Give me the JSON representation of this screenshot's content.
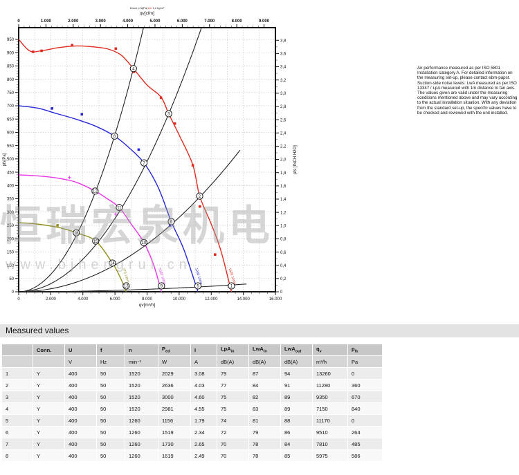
{
  "section_title": "Measured values",
  "notes": {
    "text": "Air performance measured as per ISO 5801 Installation category A. For detailed information on the measuring set-up, please contact ebm-papst. Suction-side noise levels: LwA measured as per ISO 13347 / LpA measured with 1m distance to fan axis. The values given are valid under the measuring conditions mentioned above and may vary according to the actual installation situation. With any deviation from the standard set-up, the specific values have to be checked and reviewed with the unit installed."
  },
  "chart_data": {
    "type": "line",
    "title_parts": [
      {
        "text": "Druck p fa[Pa] ",
        "color": "#222222"
      },
      {
        "text": "bei ",
        "color": "#cc2222"
      },
      {
        "text": "1,2 kg/m³",
        "color": "#222222"
      }
    ],
    "top_axis": {
      "label": "qv[cfm]",
      "min": 0,
      "max": 9416,
      "label_step": 1000,
      "minor_step": 200
    },
    "bottom_axis": {
      "label": "qv[m³/h]",
      "min": 0,
      "max": 16000,
      "label_step": 2000,
      "minor_step": 500
    },
    "left_axis": {
      "label": "pfs[Pa]",
      "min": 0,
      "max": 994,
      "label_step": 50,
      "label_max": 950,
      "minor_step": 10
    },
    "right_axis": {
      "label": "pfs [INCH H2O]",
      "min": 0,
      "max": 3.82,
      "label_step": 0.2,
      "label_max": 3.8,
      "minor_step": 0.1
    },
    "grid": {
      "x_step": 1000,
      "y_step": 50,
      "color": "#bfbfbf"
    },
    "series": [
      {
        "name": "1520 1/min",
        "color": "#e02b20",
        "marker": "square",
        "label": {
          "text": "1520 1/min",
          "qv": 13090,
          "pfs": 88,
          "angle": 72
        },
        "points": [
          [
            0,
            950
          ],
          [
            700,
            906
          ],
          [
            1500,
            908
          ],
          [
            2500,
            919
          ],
          [
            3500,
            925
          ],
          [
            4600,
            922
          ],
          [
            5600,
            913
          ],
          [
            6400,
            890
          ],
          [
            7150,
            840
          ],
          [
            8000,
            778
          ],
          [
            8870,
            733
          ],
          [
            9350,
            670
          ],
          [
            10000,
            590
          ],
          [
            10850,
            478
          ],
          [
            11280,
            360
          ],
          [
            12000,
            255
          ],
          [
            12600,
            155
          ],
          [
            13260,
            0
          ]
        ],
        "markers": [
          [
            900,
            903
          ],
          [
            1430,
            907
          ],
          [
            3330,
            928
          ],
          [
            6050,
            915
          ],
          [
            7180,
            828
          ],
          [
            8870,
            730
          ],
          [
            9730,
            633
          ],
          [
            10850,
            476
          ],
          [
            11290,
            321
          ],
          [
            12240,
            140
          ]
        ]
      },
      {
        "name": "1260 1/min",
        "color": "#2626d8",
        "marker": "square",
        "label": {
          "text": "1260 1/min",
          "qv": 11000,
          "pfs": 88,
          "angle": 72
        },
        "points": [
          [
            0,
            700
          ],
          [
            1200,
            691
          ],
          [
            2400,
            670
          ],
          [
            3600,
            649
          ],
          [
            4800,
            623
          ],
          [
            5975,
            586
          ],
          [
            6900,
            541
          ],
          [
            7810,
            485
          ],
          [
            8700,
            392
          ],
          [
            9510,
            264
          ],
          [
            10300,
            158
          ],
          [
            11170,
            0
          ]
        ],
        "markers": [
          [
            2075,
            690
          ],
          [
            3935,
            668
          ],
          [
            7480,
            535
          ],
          [
            9430,
            250
          ]
        ]
      },
      {
        "name": "1020 1/min",
        "color": "#e832e8",
        "marker": "plus",
        "label": {
          "text": "1020 1/min",
          "qv": 8720,
          "pfs": 88,
          "angle": 72
        },
        "points": [
          [
            0,
            440
          ],
          [
            1200,
            436
          ],
          [
            2400,
            428
          ],
          [
            3600,
            412
          ],
          [
            4760,
            379
          ],
          [
            5500,
            351
          ],
          [
            6270,
            317
          ],
          [
            7000,
            256
          ],
          [
            7800,
            186
          ],
          [
            8400,
            103
          ],
          [
            8900,
            0
          ]
        ],
        "markers": [
          [
            3160,
            430
          ],
          [
            6050,
            292
          ]
        ]
      },
      {
        "name": "770 1/min",
        "color": "#8f8f1a",
        "marker": "square",
        "label": {
          "text": "770 1/min",
          "qv": 6480,
          "pfs": 88,
          "angle": 72
        },
        "points": [
          [
            0,
            260
          ],
          [
            1000,
            256
          ],
          [
            2400,
            243
          ],
          [
            3590,
            222
          ],
          [
            4800,
            191
          ],
          [
            5840,
            108
          ],
          [
            6300,
            58
          ],
          [
            6700,
            0
          ]
        ],
        "markers": [
          [
            2420,
            250
          ]
        ]
      }
    ],
    "system_curves": [
      {
        "k": 1.643e-05,
        "qmax": 16000
      },
      {
        "k": 7.66e-06,
        "qmax": 16000
      },
      {
        "k": 2.8e-06,
        "qmax": 13900
      },
      {
        "k": 1.45e-07,
        "qmax": 14200
      }
    ],
    "operating_points": [
      {
        "n": 1,
        "qv": 13260,
        "pfs": 0
      },
      {
        "n": 2,
        "qv": 11280,
        "pfs": 360
      },
      {
        "n": 3,
        "qv": 9350,
        "pfs": 670
      },
      {
        "n": 4,
        "qv": 7150,
        "pfs": 840
      },
      {
        "n": 5,
        "qv": 11170,
        "pfs": 0
      },
      {
        "n": 6,
        "qv": 9510,
        "pfs": 264
      },
      {
        "n": 7,
        "qv": 7810,
        "pfs": 485
      },
      {
        "n": 8,
        "qv": 5975,
        "pfs": 586
      },
      {
        "n": 9,
        "qv": 8900,
        "pfs": 0
      },
      {
        "n": 10,
        "qv": 7800,
        "pfs": 185
      },
      {
        "n": 11,
        "qv": 6270,
        "pfs": 317
      },
      {
        "n": 12,
        "qv": 4760,
        "pfs": 379
      },
      {
        "n": 13,
        "qv": 6700,
        "pfs": 0
      },
      {
        "n": 14,
        "qv": 5840,
        "pfs": 108
      },
      {
        "n": 15,
        "qv": 4800,
        "pfs": 191
      },
      {
        "n": 16,
        "qv": 3590,
        "pfs": 222
      }
    ],
    "watermark": {
      "cjk": "恒瑞宏泉机电",
      "url": "www.bjhengrui.cn"
    }
  },
  "measured_values": {
    "columns": [
      {
        "main": "",
        "sub": "",
        "unit": ""
      },
      {
        "main": "Conn.",
        "sub": "",
        "unit": ""
      },
      {
        "main": "U",
        "sub": "",
        "unit": "V"
      },
      {
        "main": "f",
        "sub": "",
        "unit": "Hz"
      },
      {
        "main": "n",
        "sub": "",
        "unit": "min⁻¹"
      },
      {
        "main": "P",
        "sub": "ed",
        "unit": "W"
      },
      {
        "main": "I",
        "sub": "",
        "unit": "A"
      },
      {
        "main": "LpA",
        "sub": "in",
        "unit": "dB(A)"
      },
      {
        "main": "LwA",
        "sub": "in",
        "unit": "dB(A)"
      },
      {
        "main": "LwA",
        "sub": "out",
        "unit": "dB(A)"
      },
      {
        "main": "q",
        "sub": "v",
        "unit": "m³/h"
      },
      {
        "main": "p",
        "sub": "fs",
        "unit": "Pa"
      }
    ],
    "rows": [
      [
        "1",
        "Y",
        "400",
        "50",
        "1520",
        "2029",
        "3.08",
        "79",
        "87",
        "94",
        "13260",
        "0"
      ],
      [
        "2",
        "Y",
        "400",
        "50",
        "1520",
        "2636",
        "4.03",
        "77",
        "84",
        "91",
        "11280",
        "360"
      ],
      [
        "3",
        "Y",
        "400",
        "50",
        "1520",
        "3000",
        "4.60",
        "75",
        "82",
        "89",
        "9350",
        "670"
      ],
      [
        "4",
        "Y",
        "400",
        "50",
        "1520",
        "2981",
        "4.55",
        "75",
        "83",
        "89",
        "7150",
        "840"
      ],
      [
        "5",
        "Y",
        "400",
        "50",
        "1260",
        "1156",
        "1.79",
        "74",
        "81",
        "88",
        "11170",
        "0"
      ],
      [
        "6",
        "Y",
        "400",
        "50",
        "1260",
        "1519",
        "2.34",
        "72",
        "79",
        "86",
        "9510",
        "264"
      ],
      [
        "7",
        "Y",
        "400",
        "50",
        "1260",
        "1730",
        "2.65",
        "70",
        "78",
        "84",
        "7810",
        "485"
      ],
      [
        "8",
        "Y",
        "400",
        "50",
        "1260",
        "1619",
        "2.49",
        "70",
        "78",
        "85",
        "5975",
        "586"
      ]
    ]
  }
}
